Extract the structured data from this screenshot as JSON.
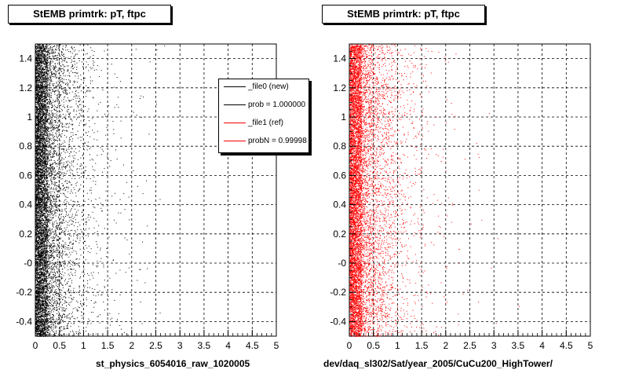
{
  "panels": [
    {
      "title": "StEMB primtrk: pT, ftpc",
      "xlabel": "st_physics_6054016_raw_1020005",
      "color": "#000000"
    },
    {
      "title": "StEMB primtrk: pT, ftpc",
      "xlabel": "dev/daq_sl302/Sat/year_2005/CuCu200_HighTower/",
      "color": "#ff0000"
    }
  ],
  "legend": {
    "entries": [
      {
        "label": "_file0 (new)",
        "color": "#000000"
      },
      {
        "label": "prob = 1.000000",
        "color": "#000000"
      },
      {
        "label": "_file1 (ref)",
        "color": "#ff0000"
      },
      {
        "label": "probN = 0.99998",
        "color": "#ff0000"
      }
    ]
  },
  "chart_data": [
    {
      "type": "scatter",
      "title": "StEMB primtrk: pT, ftpc",
      "xlabel": "st_physics_6054016_raw_1020005",
      "ylabel": "",
      "xlim": [
        0,
        5
      ],
      "ylim": [
        -0.5,
        1.5
      ],
      "xticks": [
        "0",
        "0.5",
        "1",
        "1.5",
        "2",
        "2.5",
        "3",
        "3.5",
        "4",
        "4.5",
        "5"
      ],
      "yticks": [
        "-0.4",
        "-0.2",
        "-0",
        "0.2",
        "0.4",
        "0.6",
        "0.8",
        "1",
        "1.2",
        "1.4"
      ],
      "grid": true,
      "series": [
        {
          "name": "_file0 (new)",
          "color": "#000000"
        }
      ],
      "density_profile": {
        "x_peak": 0.1,
        "x_decay": 0.35,
        "y_uniform": [
          -0.5,
          1.5
        ]
      }
    },
    {
      "type": "scatter",
      "title": "StEMB primtrk: pT, ftpc",
      "xlabel": "dev/daq_sl302/Sat/year_2005/CuCu200_HighTower/",
      "ylabel": "",
      "xlim": [
        0,
        5
      ],
      "ylim": [
        -0.5,
        1.5
      ],
      "xticks": [
        "0",
        "0.5",
        "1",
        "1.5",
        "2",
        "2.5",
        "3",
        "3.5",
        "4",
        "4.5",
        "5"
      ],
      "yticks": [
        "-0.4",
        "-0.2",
        "-0",
        "0.2",
        "0.4",
        "0.6",
        "0.8",
        "1",
        "1.2",
        "1.4"
      ],
      "grid": true,
      "series": [
        {
          "name": "_file1 (ref)",
          "color": "#ff0000"
        }
      ],
      "density_profile": {
        "x_peak": 0.1,
        "x_decay": 0.4,
        "y_uniform": [
          -0.5,
          1.5
        ]
      }
    }
  ]
}
